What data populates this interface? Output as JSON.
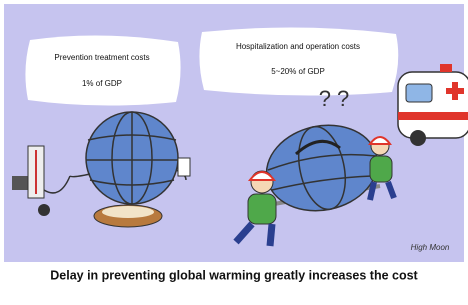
{
  "bubbles": [
    {
      "title": "Prevention treatment costs",
      "value": "1% of GDP"
    },
    {
      "title": "Hospitalization and operation costs",
      "value": "5~20% of GDP"
    }
  ],
  "question_marks": "? ?",
  "signature": "High Moon",
  "caption": "Delay in preventing global warming greatly increases the cost"
}
